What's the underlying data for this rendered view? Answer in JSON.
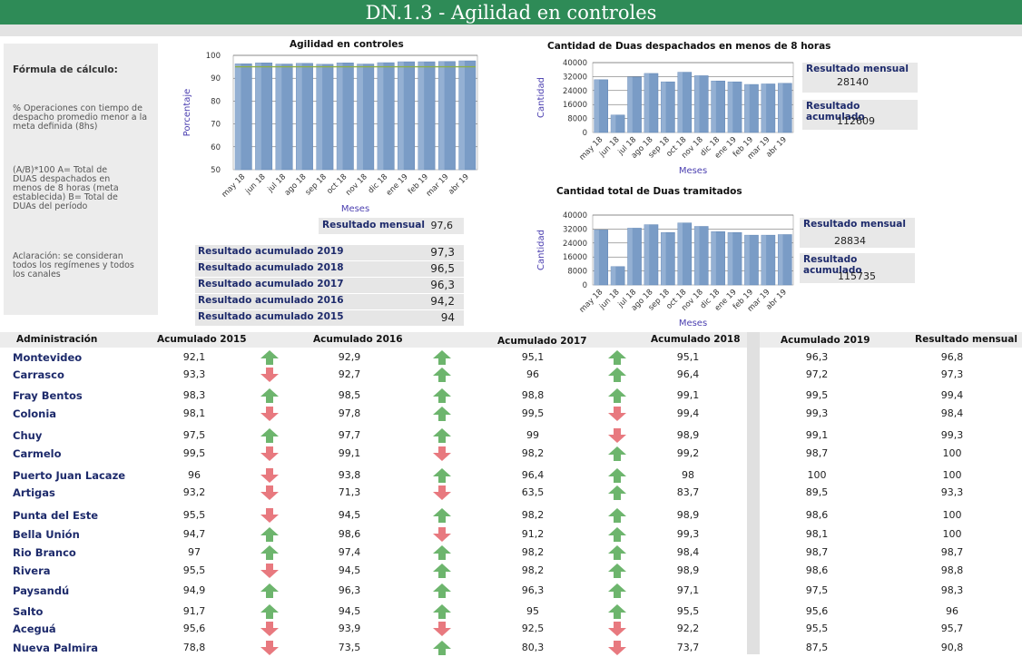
{
  "header": {
    "title": "DN.1.3 - Agilidad en controles"
  },
  "formula": {
    "heading": "Fórmula de cálculo:",
    "description": [
      "% Operaciones con tiempo de",
      "despacho promedio menor a la",
      "meta definida (8hs)"
    ],
    "definition": [
      "(A/B)*100 A= Total de",
      "DUAS despachados en",
      "menos de 8 horas (meta",
      "establecida) B= Total de",
      "DUAs del período"
    ],
    "note": [
      "Aclaración: se consideran",
      "todos los regímenes y todos",
      "los canales"
    ]
  },
  "chart_data": [
    {
      "type": "bar",
      "title": "Agilidad en controles",
      "xlabel": "Meses",
      "ylabel": "Porcentaje",
      "categories": [
        "may 18",
        "jun 18",
        "jul 18",
        "ago 18",
        "sep 18",
        "oct 18",
        "nov 18",
        "dic 18",
        "ene 19",
        "feb 19",
        "mar 19",
        "abr 19"
      ],
      "values": [
        96.3,
        96.7,
        96.2,
        96.5,
        96.1,
        96.7,
        96.2,
        96.8,
        97.2,
        97.2,
        97.3,
        97.6
      ],
      "target_line": 95,
      "ylim": [
        50,
        100
      ],
      "yticks": [
        50,
        60,
        70,
        80,
        90,
        100
      ],
      "grid": true
    },
    {
      "type": "bar",
      "title": "Cantidad de Duas despachados en menos de 8 horas",
      "xlabel": "Meses",
      "ylabel": "Cantidad",
      "categories": [
        "may 18",
        "jun 18",
        "jul 18",
        "ago 18",
        "sep 18",
        "oct 18",
        "nov 18",
        "dic 18",
        "ene 19",
        "feb 19",
        "mar 19",
        "abr 19"
      ],
      "values": [
        30200,
        10000,
        31800,
        33800,
        29000,
        34500,
        32500,
        29500,
        29000,
        27500,
        27800,
        28140
      ],
      "ylim": [
        0,
        40000
      ],
      "yticks": [
        0,
        8000,
        16000,
        24000,
        32000,
        40000
      ],
      "grid": true
    },
    {
      "type": "bar",
      "title": "Cantidad total de Duas tramitados",
      "xlabel": "Meses",
      "ylabel": "Cantidad",
      "categories": [
        "may 18",
        "jun 18",
        "jul 18",
        "ago 18",
        "sep 18",
        "oct 18",
        "nov 18",
        "dic 18",
        "ene 19",
        "feb 19",
        "mar 19",
        "abr 19"
      ],
      "values": [
        31500,
        10500,
        32500,
        34500,
        30000,
        35500,
        33500,
        30500,
        30000,
        28500,
        28500,
        28834
      ],
      "ylim": [
        0,
        40000
      ],
      "yticks": [
        0,
        8000,
        16000,
        24000,
        32000,
        40000
      ],
      "grid": true
    }
  ],
  "chart1_result": {
    "label": "Resultado mensual",
    "value": "97,6"
  },
  "accumulated": [
    {
      "label": "Resultado acumulado 2019",
      "value": "97,3"
    },
    {
      "label": "Resultado acumulado 2018",
      "value": "96,5"
    },
    {
      "label": "Resultado acumulado 2017",
      "value": "96,3"
    },
    {
      "label": "Resultado acumulado 2016",
      "value": "94,2"
    },
    {
      "label": "Resultado acumulado 2015",
      "value": "94"
    }
  ],
  "chart2_results": {
    "monthly_label": "Resultado mensual",
    "monthly_value": "28140",
    "acc_label": "Resultado acumulado",
    "acc_value": "112609"
  },
  "chart3_results": {
    "monthly_label": "Resultado mensual",
    "monthly_value": "28834",
    "acc_label": "Resultado acumulado",
    "acc_value": "115735"
  },
  "table": {
    "headers": [
      "Administración",
      "Acumulado 2015",
      "Acumulado 2016",
      "Acumulado 2017",
      "Acumulado 2018",
      "Acumulado 2019",
      "Resultado mensual"
    ],
    "colors": {
      "up": "#6db56d",
      "down": "#e8797f"
    },
    "rows": [
      {
        "name": "Montevideo",
        "v": [
          "92,1",
          "92,9",
          "95,1",
          "95,1",
          "96,3",
          "96,8"
        ],
        "a": [
          "up",
          "up",
          "up"
        ]
      },
      {
        "name": "Carrasco",
        "v": [
          "93,3",
          "92,7",
          "96",
          "96,4",
          "97,2",
          "97,3"
        ],
        "a": [
          "down",
          "up",
          "up"
        ]
      },
      {
        "name": "Fray Bentos",
        "v": [
          "98,3",
          "98,5",
          "98,8",
          "99,1",
          "99,5",
          "99,4"
        ],
        "a": [
          "up",
          "up",
          "up"
        ]
      },
      {
        "name": "Colonia",
        "v": [
          "98,1",
          "97,8",
          "99,5",
          "99,4",
          "99,3",
          "98,4"
        ],
        "a": [
          "down",
          "up",
          "down"
        ]
      },
      {
        "name": "Chuy",
        "v": [
          "97,5",
          "97,7",
          "99",
          "98,9",
          "99,1",
          "99,3"
        ],
        "a": [
          "up",
          "up",
          "down"
        ]
      },
      {
        "name": "Carmelo",
        "v": [
          "99,5",
          "99,1",
          "98,2",
          "99,2",
          "98,7",
          "100"
        ],
        "a": [
          "down",
          "down",
          "up"
        ]
      },
      {
        "name": "Puerto Juan Lacaze",
        "v": [
          "96",
          "93,8",
          "96,4",
          "98",
          "100",
          "100"
        ],
        "a": [
          "down",
          "up",
          "up"
        ]
      },
      {
        "name": "Artigas",
        "v": [
          "93,2",
          "71,3",
          "63,5",
          "83,7",
          "89,5",
          "93,3"
        ],
        "a": [
          "down",
          "down",
          "up"
        ]
      },
      {
        "name": "Punta del Este",
        "v": [
          "95,5",
          "94,5",
          "98,2",
          "98,9",
          "98,6",
          "100"
        ],
        "a": [
          "down",
          "up",
          "up"
        ]
      },
      {
        "name": "Bella Unión",
        "v": [
          "94,7",
          "98,6",
          "91,2",
          "99,3",
          "98,1",
          "100"
        ],
        "a": [
          "up",
          "down",
          "up"
        ]
      },
      {
        "name": "Rio Branco",
        "v": [
          "97",
          "97,4",
          "98,2",
          "98,4",
          "98,7",
          "98,7"
        ],
        "a": [
          "up",
          "up",
          "up"
        ]
      },
      {
        "name": "Rivera",
        "v": [
          "95,5",
          "94,5",
          "98,2",
          "98,9",
          "98,6",
          "98,8"
        ],
        "a": [
          "down",
          "up",
          "up"
        ]
      },
      {
        "name": "Paysandú",
        "v": [
          "94,9",
          "96,3",
          "96,3",
          "97,1",
          "97,5",
          "98,3"
        ],
        "a": [
          "up",
          "up",
          "up"
        ]
      },
      {
        "name": "Salto",
        "v": [
          "91,7",
          "94,5",
          "95",
          "95,5",
          "95,6",
          "96"
        ],
        "a": [
          "up",
          "up",
          "up"
        ]
      },
      {
        "name": "Aceguá",
        "v": [
          "95,6",
          "93,9",
          "92,5",
          "92,2",
          "95,5",
          "95,7"
        ],
        "a": [
          "down",
          "down",
          "down"
        ]
      },
      {
        "name": "Nueva Palmira",
        "v": [
          "78,8",
          "73,5",
          "80,3",
          "73,7",
          "87,5",
          "90,8"
        ],
        "a": [
          "down",
          "up",
          "down"
        ]
      }
    ]
  }
}
